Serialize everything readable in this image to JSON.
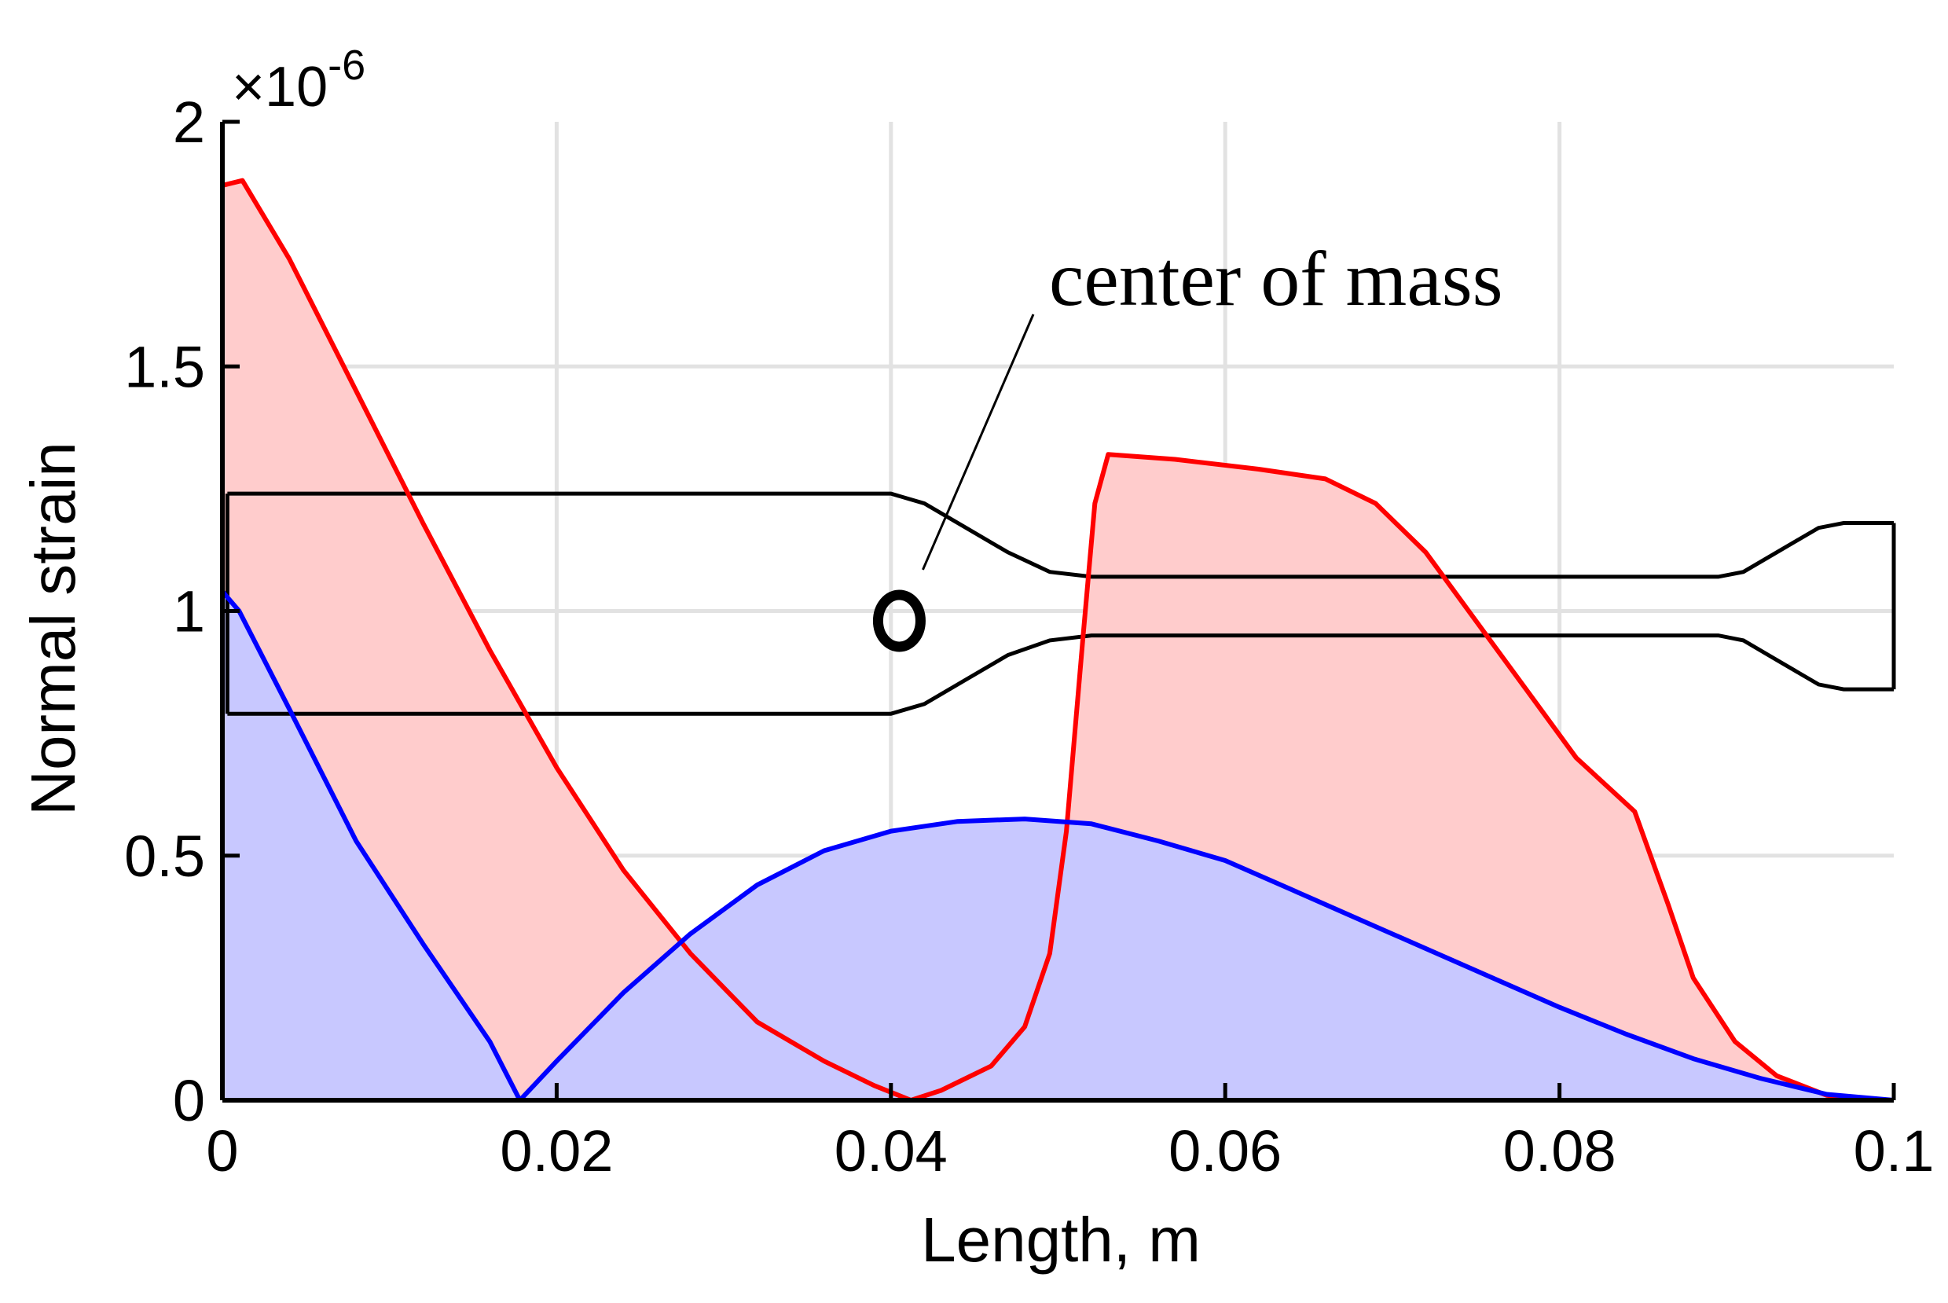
{
  "chart_data": {
    "type": "area",
    "xlabel": "Length, m",
    "ylabel": "Normal strain",
    "y_multiplier_label": "×10",
    "y_multiplier_exponent": "-6",
    "xlim": [
      0,
      0.1
    ],
    "ylim": [
      0,
      2
    ],
    "x_ticks": [
      0,
      0.02,
      0.04,
      0.06,
      0.08,
      0.1
    ],
    "x_tick_labels": [
      "0",
      "0.02",
      "0.04",
      "0.06",
      "0.08",
      "0.1"
    ],
    "y_ticks": [
      0,
      0.5,
      1,
      1.5,
      2
    ],
    "y_tick_labels": [
      "0",
      "0.5",
      "1",
      "1.5",
      "2"
    ],
    "grid": true,
    "annotation": "center of mass",
    "annotation_point": [
      0.0405,
      0.98
    ],
    "series": [
      {
        "color": "#ff0000",
        "fill": "#ffcccc",
        "points": [
          [
            0,
            1.87
          ],
          [
            0.0012,
            1.88
          ],
          [
            0.004,
            1.72
          ],
          [
            0.008,
            1.45
          ],
          [
            0.012,
            1.18
          ],
          [
            0.016,
            0.92
          ],
          [
            0.02,
            0.68
          ],
          [
            0.024,
            0.47
          ],
          [
            0.028,
            0.3
          ],
          [
            0.032,
            0.16
          ],
          [
            0.036,
            0.08
          ],
          [
            0.039,
            0.03
          ],
          [
            0.0412,
            0.0
          ],
          [
            0.043,
            0.02
          ],
          [
            0.046,
            0.07
          ],
          [
            0.048,
            0.15
          ],
          [
            0.0495,
            0.3
          ],
          [
            0.0505,
            0.55
          ],
          [
            0.0515,
            0.95
          ],
          [
            0.0522,
            1.22
          ],
          [
            0.053,
            1.32
          ],
          [
            0.057,
            1.31
          ],
          [
            0.062,
            1.29
          ],
          [
            0.066,
            1.27
          ],
          [
            0.069,
            1.22
          ],
          [
            0.072,
            1.12
          ],
          [
            0.075,
            0.98
          ],
          [
            0.078,
            0.84
          ],
          [
            0.081,
            0.7
          ],
          [
            0.0845,
            0.59
          ],
          [
            0.0865,
            0.4
          ],
          [
            0.088,
            0.25
          ],
          [
            0.0905,
            0.12
          ],
          [
            0.093,
            0.05
          ],
          [
            0.096,
            0.01
          ],
          [
            0.0985,
            0.0
          ],
          [
            0.1,
            0.0
          ]
        ]
      },
      {
        "color": "#0000ff",
        "fill": "#c8c8ff",
        "points": [
          [
            0,
            1.04
          ],
          [
            0.001,
            1.0
          ],
          [
            0.004,
            0.8
          ],
          [
            0.008,
            0.53
          ],
          [
            0.012,
            0.32
          ],
          [
            0.016,
            0.12
          ],
          [
            0.0178,
            0.0
          ],
          [
            0.02,
            0.08
          ],
          [
            0.024,
            0.22
          ],
          [
            0.028,
            0.34
          ],
          [
            0.032,
            0.44
          ],
          [
            0.036,
            0.51
          ],
          [
            0.04,
            0.55
          ],
          [
            0.044,
            0.57
          ],
          [
            0.048,
            0.575
          ],
          [
            0.052,
            0.565
          ],
          [
            0.056,
            0.53
          ],
          [
            0.06,
            0.49
          ],
          [
            0.064,
            0.43
          ],
          [
            0.068,
            0.37
          ],
          [
            0.072,
            0.31
          ],
          [
            0.076,
            0.25
          ],
          [
            0.08,
            0.19
          ],
          [
            0.084,
            0.135
          ],
          [
            0.088,
            0.085
          ],
          [
            0.092,
            0.045
          ],
          [
            0.096,
            0.012
          ],
          [
            0.1,
            0.0
          ]
        ]
      }
    ],
    "shape_outline": {
      "color": "#000000",
      "top": [
        [
          0.0003,
          1.24
        ],
        [
          0.04,
          1.24
        ],
        [
          0.042,
          1.22
        ],
        [
          0.0445,
          1.17
        ],
        [
          0.047,
          1.12
        ],
        [
          0.0495,
          1.08
        ],
        [
          0.052,
          1.07
        ],
        [
          0.0895,
          1.07
        ],
        [
          0.091,
          1.08
        ],
        [
          0.093,
          1.12
        ],
        [
          0.0955,
          1.17
        ],
        [
          0.097,
          1.18
        ],
        [
          0.1,
          1.18
        ]
      ],
      "bottom": [
        [
          0.0003,
          0.79
        ],
        [
          0.04,
          0.79
        ],
        [
          0.042,
          0.81
        ],
        [
          0.0445,
          0.86
        ],
        [
          0.047,
          0.91
        ],
        [
          0.0495,
          0.94
        ],
        [
          0.052,
          0.95
        ],
        [
          0.0895,
          0.95
        ],
        [
          0.091,
          0.94
        ],
        [
          0.093,
          0.9
        ],
        [
          0.0955,
          0.85
        ],
        [
          0.097,
          0.84
        ],
        [
          0.1,
          0.84
        ]
      ]
    }
  }
}
